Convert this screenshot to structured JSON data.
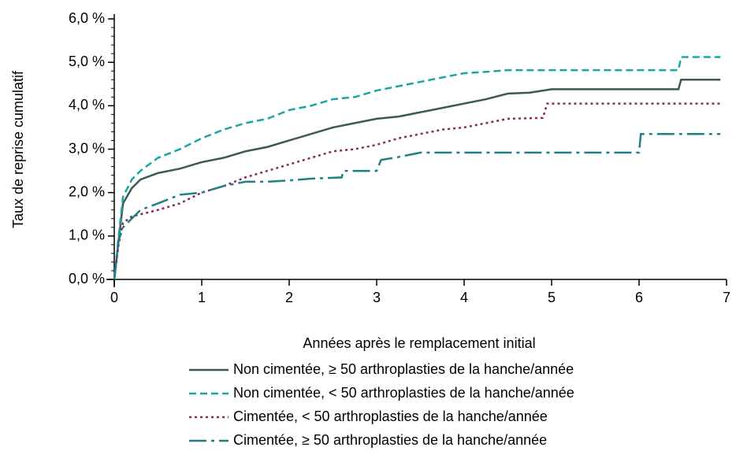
{
  "chart_data": {
    "type": "line",
    "xlabel": "Années après le remplacement initial",
    "ylabel": "Taux de reprise cumulatif",
    "xlim": [
      0,
      7
    ],
    "xticks": [
      0,
      1,
      2,
      3,
      4,
      5,
      6,
      7
    ],
    "ylim": [
      0,
      6
    ],
    "yticks": [
      {
        "value": 0,
        "label": "0,0 %"
      },
      {
        "value": 1,
        "label": "1,0 %"
      },
      {
        "value": 2,
        "label": "2,0 %"
      },
      {
        "value": 3,
        "label": "3,0 %"
      },
      {
        "value": 4,
        "label": "4,0 %"
      },
      {
        "value": 5,
        "label": "5,0 %"
      },
      {
        "value": 6,
        "label": "6,0 %"
      }
    ],
    "series": [
      {
        "name": "Non cimentée, ≥ 50 arthroplasties de la hanche/année",
        "color": "#3d5858",
        "dash": "solid",
        "x": [
          0,
          0.05,
          0.1,
          0.2,
          0.3,
          0.5,
          0.75,
          1,
          1.25,
          1.5,
          1.75,
          2,
          2.25,
          2.5,
          2.75,
          3,
          3.25,
          3.5,
          3.75,
          4,
          4.25,
          4.5,
          4.75,
          5,
          5.5,
          6,
          6.45,
          6.48,
          6.93
        ],
        "values": [
          0,
          0.9,
          1.75,
          2.1,
          2.3,
          2.45,
          2.55,
          2.7,
          2.8,
          2.95,
          3.05,
          3.2,
          3.35,
          3.5,
          3.6,
          3.7,
          3.75,
          3.85,
          3.95,
          4.05,
          4.15,
          4.28,
          4.3,
          4.38,
          4.38,
          4.38,
          4.38,
          4.6,
          4.6
        ]
      },
      {
        "name": "Non cimentée, < 50 arthroplasties de la hanche/année",
        "color": "#1aa5a5",
        "dash": "dashed",
        "x": [
          0,
          0.05,
          0.1,
          0.2,
          0.3,
          0.5,
          0.75,
          1,
          1.25,
          1.5,
          1.75,
          2,
          2.25,
          2.5,
          2.75,
          3,
          3.25,
          3.5,
          3.75,
          4,
          4.25,
          4.5,
          5,
          6,
          6.45,
          6.48,
          6.93
        ],
        "values": [
          0,
          1.0,
          1.9,
          2.3,
          2.5,
          2.8,
          3.0,
          3.25,
          3.45,
          3.6,
          3.7,
          3.9,
          4.0,
          4.15,
          4.2,
          4.35,
          4.45,
          4.55,
          4.65,
          4.75,
          4.78,
          4.82,
          4.82,
          4.82,
          4.82,
          5.12,
          5.12
        ]
      },
      {
        "name": "Cimentée, < 50 arthroplasties de la hanche/année",
        "color": "#8b2560",
        "dash": "dotted",
        "x": [
          0,
          0.05,
          0.1,
          0.2,
          0.3,
          0.5,
          0.75,
          1,
          1.25,
          1.5,
          1.75,
          2,
          2.25,
          2.5,
          2.75,
          3,
          3.25,
          3.5,
          3.75,
          4,
          4.25,
          4.5,
          4.9,
          4.95,
          6.93
        ],
        "values": [
          0,
          0.8,
          1.3,
          1.45,
          1.5,
          1.6,
          1.75,
          2.0,
          2.15,
          2.35,
          2.5,
          2.65,
          2.8,
          2.95,
          3.0,
          3.1,
          3.25,
          3.35,
          3.45,
          3.5,
          3.6,
          3.7,
          3.72,
          4.05,
          4.05
        ]
      },
      {
        "name": "Cimentée, ≥ 50 arthroplasties de la hanche/année",
        "color": "#1f7f86",
        "dash": "dashdot",
        "x": [
          0,
          0.05,
          0.1,
          0.2,
          0.3,
          0.5,
          0.75,
          1,
          1.25,
          1.5,
          1.75,
          2,
          2.25,
          2.6,
          2.62,
          3,
          3.05,
          3.25,
          3.5,
          4,
          5,
          6,
          6.02,
          6.93
        ],
        "values": [
          0,
          0.9,
          1.2,
          1.4,
          1.6,
          1.75,
          1.95,
          2.0,
          2.15,
          2.25,
          2.25,
          2.28,
          2.32,
          2.35,
          2.5,
          2.5,
          2.75,
          2.82,
          2.92,
          2.92,
          2.92,
          2.92,
          3.35,
          3.35
        ]
      }
    ]
  }
}
